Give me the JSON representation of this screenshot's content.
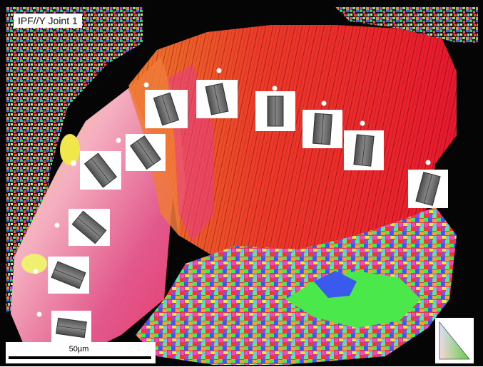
{
  "image": {
    "label": "IPF//Y Joint 1",
    "scale_bar_label": "50µm",
    "colors": {
      "background": "#000000",
      "red_grain": "#f02a28",
      "orange_grain": "#f26a3a",
      "magenta_grain": "#e84a8a",
      "pink_grain": "#f2a2b8",
      "yellow_grain": "#f0e84a",
      "green_grain": "#4ad84a",
      "blue_grain": "#3a5aee",
      "crystal_gray": "#6a6a6a"
    },
    "icons": [
      "hexagonal-prism-crystal-icon",
      "ipf-color-key-triangle-icon"
    ]
  }
}
